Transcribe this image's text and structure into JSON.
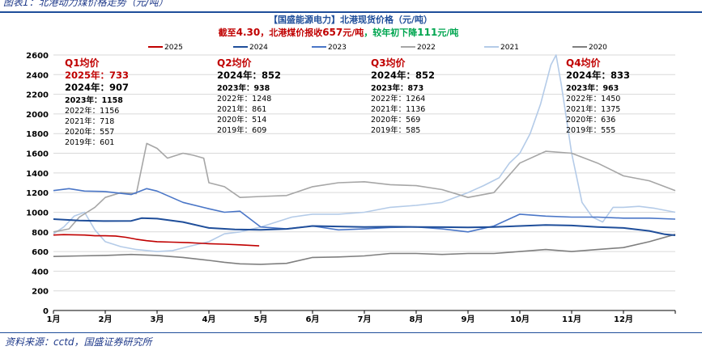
{
  "figure_caption": "图表1：北港动力煤价格走势（元/吨）",
  "source": "资料来源：cctd，国盛证券研究所",
  "colors": {
    "2025": "#c00000",
    "2024": "#1f4e9a",
    "2023": "#4a76c7",
    "2022": "#a6a6a6",
    "2021": "#b4cbe8",
    "2020": "#7f7f7f",
    "grid": "#d9d9d9",
    "title": "#1f4e9a",
    "highlight_red": "#c00000",
    "highlight_green": "#00a650"
  },
  "chart_data": {
    "type": "line",
    "title": "【国盛能源电力】北港现货价格（元/吨）",
    "subtitle": {
      "prefix": "截至",
      "date": "4.30",
      "mid": "，北港煤价报收",
      "price": "657",
      "unit1": "元/吨",
      "mid2": "，较年初下降",
      "change": "111",
      "unit2": "元/吨"
    },
    "ylim": [
      0,
      2600
    ],
    "yticks": [
      "0",
      "200",
      "400",
      "600",
      "800",
      "1000",
      "1200",
      "1400",
      "1600",
      "1800",
      "2000",
      "2200",
      "2400",
      "2600"
    ],
    "xticks": [
      "1月",
      "2月",
      "3月",
      "4月",
      "5月",
      "6月",
      "7月",
      "8月",
      "9月",
      "10月",
      "11月",
      "12月"
    ],
    "grid": "horizontal",
    "legend_position": "top",
    "x_unit": "month (1 = Jan 1st, 13 = Dec 31st)",
    "series": [
      {
        "name": "2025",
        "x": [
          1.0,
          1.2,
          1.4,
          1.6,
          1.8,
          2.0,
          2.2,
          2.4,
          2.6,
          2.8,
          3.0,
          3.3,
          3.6,
          4.0,
          4.3,
          4.6,
          4.97
        ],
        "values": [
          768,
          772,
          770,
          768,
          760,
          760,
          758,
          745,
          725,
          710,
          700,
          695,
          690,
          680,
          675,
          668,
          657
        ]
      },
      {
        "name": "2024",
        "x": [
          1.0,
          1.5,
          2.0,
          2.5,
          2.7,
          3.0,
          3.5,
          4.0,
          4.5,
          5.0,
          5.5,
          6.0,
          6.5,
          7.0,
          7.5,
          8.0,
          8.5,
          9.0,
          9.5,
          10.0,
          10.5,
          11.0,
          11.5,
          12.0,
          12.5,
          12.8,
          13.0
        ],
        "values": [
          930,
          915,
          910,
          912,
          940,
          935,
          900,
          840,
          825,
          820,
          830,
          860,
          855,
          850,
          852,
          850,
          848,
          845,
          850,
          860,
          870,
          865,
          850,
          840,
          810,
          775,
          765
        ]
      },
      {
        "name": "2023",
        "x": [
          1.0,
          1.3,
          1.6,
          2.0,
          2.5,
          2.8,
          3.0,
          3.5,
          4.0,
          4.3,
          4.6,
          5.0,
          5.5,
          6.0,
          6.5,
          7.0,
          7.5,
          8.0,
          8.5,
          9.0,
          9.5,
          10.0,
          10.5,
          11.0,
          11.5,
          12.0,
          12.5,
          13.0
        ],
        "values": [
          1220,
          1240,
          1215,
          1210,
          1180,
          1240,
          1215,
          1100,
          1035,
          1000,
          1010,
          850,
          830,
          860,
          820,
          830,
          845,
          850,
          830,
          800,
          860,
          980,
          960,
          950,
          950,
          940,
          940,
          930
        ]
      },
      {
        "name": "2022",
        "x": [
          1.0,
          1.3,
          1.5,
          1.8,
          2.0,
          2.3,
          2.6,
          2.8,
          3.0,
          3.2,
          3.5,
          3.7,
          3.9,
          4.0,
          4.3,
          4.6,
          5.0,
          5.5,
          6.0,
          6.5,
          7.0,
          7.5,
          8.0,
          8.5,
          9.0,
          9.5,
          10.0,
          10.5,
          11.0,
          11.5,
          12.0,
          12.5,
          13.0
        ],
        "values": [
          800,
          830,
          950,
          1050,
          1150,
          1200,
          1190,
          1700,
          1650,
          1550,
          1600,
          1580,
          1550,
          1300,
          1260,
          1150,
          1160,
          1170,
          1260,
          1300,
          1310,
          1280,
          1270,
          1230,
          1150,
          1200,
          1500,
          1620,
          1600,
          1500,
          1370,
          1320,
          1220
        ]
      },
      {
        "name": "2021",
        "x": [
          1.0,
          1.2,
          1.4,
          1.6,
          1.8,
          2.0,
          2.3,
          2.6,
          3.0,
          3.3,
          3.6,
          4.0,
          4.3,
          4.6,
          5.0,
          5.3,
          5.6,
          6.0,
          6.5,
          7.0,
          7.5,
          8.0,
          8.5,
          9.0,
          9.3,
          9.6,
          9.8,
          10.0,
          10.2,
          10.4,
          10.6,
          10.7,
          10.8,
          11.0,
          11.2,
          11.4,
          11.6,
          11.8,
          12.0,
          12.3,
          12.6,
          13.0
        ],
        "values": [
          780,
          850,
          960,
          1000,
          820,
          700,
          650,
          620,
          600,
          610,
          650,
          700,
          780,
          800,
          850,
          900,
          950,
          980,
          980,
          1000,
          1050,
          1070,
          1100,
          1200,
          1270,
          1350,
          1500,
          1600,
          1800,
          2100,
          2500,
          2600,
          2300,
          1600,
          1100,
          950,
          900,
          1050,
          1050,
          1060,
          1040,
          1000
        ]
      },
      {
        "name": "2020",
        "x": [
          1.0,
          1.5,
          2.0,
          2.5,
          3.0,
          3.5,
          4.0,
          4.3,
          4.6,
          5.0,
          5.5,
          6.0,
          6.5,
          7.0,
          7.5,
          8.0,
          8.5,
          9.0,
          9.5,
          10.0,
          10.5,
          11.0,
          11.5,
          12.0,
          12.5,
          13.0
        ],
        "values": [
          550,
          555,
          560,
          570,
          560,
          540,
          510,
          490,
          475,
          470,
          480,
          540,
          545,
          555,
          580,
          580,
          570,
          580,
          580,
          600,
          620,
          600,
          620,
          640,
          700,
          775
        ]
      }
    ],
    "annotations": [
      {
        "quarter": "Q1均价",
        "lines": [
          {
            "text": "2025年：733",
            "style": "red-bold"
          },
          {
            "text": "2024年：907",
            "style": "bold-large"
          },
          {
            "text": "2023年：1158",
            "style": "bold"
          },
          {
            "text": "2022年：1156",
            "style": "normal"
          },
          {
            "text": "2021年：718",
            "style": "normal"
          },
          {
            "text": "2020年：557",
            "style": "normal"
          },
          {
            "text": "2019年：601",
            "style": "normal"
          }
        ]
      },
      {
        "quarter": "Q2均价",
        "lines": [
          {
            "text": "2024年：852",
            "style": "bold-large"
          },
          {
            "text": "2023年：938",
            "style": "bold"
          },
          {
            "text": "2022年：1248",
            "style": "normal"
          },
          {
            "text": "2021年：861",
            "style": "normal"
          },
          {
            "text": "2020年：514",
            "style": "normal"
          },
          {
            "text": "2019年：609",
            "style": "normal"
          }
        ]
      },
      {
        "quarter": "Q3均价",
        "lines": [
          {
            "text": "2024年：852",
            "style": "bold-large"
          },
          {
            "text": "2023年：873",
            "style": "bold"
          },
          {
            "text": "2022年：1264",
            "style": "normal"
          },
          {
            "text": "2021年：1136",
            "style": "normal"
          },
          {
            "text": "2020年：569",
            "style": "normal"
          },
          {
            "text": "2019年：585",
            "style": "normal"
          }
        ]
      },
      {
        "quarter": "Q4均价",
        "lines": [
          {
            "text": "2024年：833",
            "style": "bold-large"
          },
          {
            "text": "2023年：963",
            "style": "bold"
          },
          {
            "text": "2022年：1450",
            "style": "normal"
          },
          {
            "text": "2021年：1375",
            "style": "normal"
          },
          {
            "text": "2020年：636",
            "style": "normal"
          },
          {
            "text": "2019年：555",
            "style": "normal"
          }
        ]
      }
    ]
  }
}
